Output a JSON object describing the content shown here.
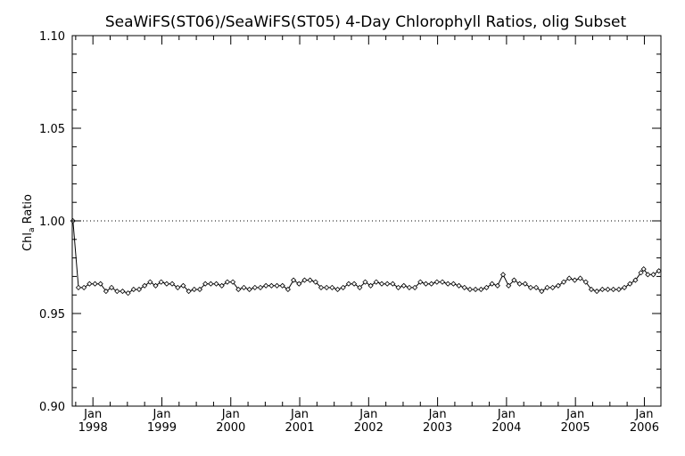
{
  "chart_data": {
    "type": "line",
    "title": "SeaWiFS(ST06)/SeaWiFS(ST05) 4-Day Chlorophyll Ratios, olig Subset",
    "ylabel_main": "Chl",
    "ylabel_sub": "a",
    "ylabel_tail": " Ratio",
    "xlabel": "",
    "ylim": [
      0.9,
      1.1
    ],
    "xlim": [
      1997.7,
      2006.24
    ],
    "y_ticks": [
      {
        "value": 0.9,
        "label": "0.90"
      },
      {
        "value": 0.95,
        "label": "0.95"
      },
      {
        "value": 1.0,
        "label": "1.00"
      },
      {
        "value": 1.05,
        "label": "1.05"
      },
      {
        "value": 1.1,
        "label": "1.10"
      }
    ],
    "x_ticks": [
      {
        "value": 1998.0,
        "month": "Jan",
        "year": "1998"
      },
      {
        "value": 1999.0,
        "month": "Jan",
        "year": "1999"
      },
      {
        "value": 2000.0,
        "month": "Jan",
        "year": "2000"
      },
      {
        "value": 2001.0,
        "month": "Jan",
        "year": "2001"
      },
      {
        "value": 2002.0,
        "month": "Jan",
        "year": "2002"
      },
      {
        "value": 2003.0,
        "month": "Jan",
        "year": "2003"
      },
      {
        "value": 2004.0,
        "month": "Jan",
        "year": "2004"
      },
      {
        "value": 2005.0,
        "month": "Jan",
        "year": "2005"
      },
      {
        "value": 2006.0,
        "month": "Jan",
        "year": "2006"
      }
    ],
    "reference_line": {
      "y": 1.0,
      "style": "dotted"
    },
    "grid": false,
    "series": [
      {
        "marker": "diamond",
        "color": "#000000",
        "points": [
          [
            1997.71,
            1.0
          ],
          [
            1997.79,
            0.964
          ],
          [
            1997.87,
            0.964
          ],
          [
            1997.95,
            0.966
          ],
          [
            1998.03,
            0.966
          ],
          [
            1998.11,
            0.966
          ],
          [
            1998.19,
            0.962
          ],
          [
            1998.27,
            0.964
          ],
          [
            1998.35,
            0.962
          ],
          [
            1998.43,
            0.962
          ],
          [
            1998.51,
            0.961
          ],
          [
            1998.59,
            0.963
          ],
          [
            1998.67,
            0.963
          ],
          [
            1998.75,
            0.965
          ],
          [
            1998.83,
            0.967
          ],
          [
            1998.91,
            0.965
          ],
          [
            1998.99,
            0.967
          ],
          [
            1999.07,
            0.966
          ],
          [
            1999.15,
            0.966
          ],
          [
            1999.23,
            0.964
          ],
          [
            1999.31,
            0.965
          ],
          [
            1999.39,
            0.962
          ],
          [
            1999.47,
            0.963
          ],
          [
            1999.55,
            0.963
          ],
          [
            1999.63,
            0.966
          ],
          [
            1999.71,
            0.966
          ],
          [
            1999.79,
            0.966
          ],
          [
            1999.87,
            0.965
          ],
          [
            1999.95,
            0.967
          ],
          [
            2000.03,
            0.967
          ],
          [
            2000.11,
            0.963
          ],
          [
            2000.19,
            0.964
          ],
          [
            2000.27,
            0.963
          ],
          [
            2000.35,
            0.964
          ],
          [
            2000.43,
            0.964
          ],
          [
            2000.51,
            0.965
          ],
          [
            2000.59,
            0.965
          ],
          [
            2000.67,
            0.965
          ],
          [
            2000.75,
            0.965
          ],
          [
            2000.83,
            0.963
          ],
          [
            2000.91,
            0.968
          ],
          [
            2000.99,
            0.966
          ],
          [
            2001.07,
            0.968
          ],
          [
            2001.15,
            0.968
          ],
          [
            2001.23,
            0.967
          ],
          [
            2001.31,
            0.964
          ],
          [
            2001.39,
            0.964
          ],
          [
            2001.47,
            0.964
          ],
          [
            2001.55,
            0.963
          ],
          [
            2001.63,
            0.964
          ],
          [
            2001.71,
            0.966
          ],
          [
            2001.79,
            0.966
          ],
          [
            2001.87,
            0.964
          ],
          [
            2001.95,
            0.967
          ],
          [
            2002.03,
            0.965
          ],
          [
            2002.11,
            0.967
          ],
          [
            2002.19,
            0.966
          ],
          [
            2002.27,
            0.966
          ],
          [
            2002.35,
            0.966
          ],
          [
            2002.43,
            0.964
          ],
          [
            2002.51,
            0.965
          ],
          [
            2002.59,
            0.964
          ],
          [
            2002.67,
            0.964
          ],
          [
            2002.75,
            0.967
          ],
          [
            2002.83,
            0.966
          ],
          [
            2002.91,
            0.966
          ],
          [
            2002.99,
            0.967
          ],
          [
            2003.07,
            0.967
          ],
          [
            2003.15,
            0.966
          ],
          [
            2003.23,
            0.966
          ],
          [
            2003.31,
            0.965
          ],
          [
            2003.39,
            0.964
          ],
          [
            2003.47,
            0.963
          ],
          [
            2003.55,
            0.963
          ],
          [
            2003.63,
            0.963
          ],
          [
            2003.71,
            0.964
          ],
          [
            2003.79,
            0.966
          ],
          [
            2003.87,
            0.965
          ],
          [
            2003.95,
            0.971
          ],
          [
            2004.03,
            0.965
          ],
          [
            2004.11,
            0.968
          ],
          [
            2004.19,
            0.966
          ],
          [
            2004.27,
            0.966
          ],
          [
            2004.35,
            0.964
          ],
          [
            2004.43,
            0.964
          ],
          [
            2004.51,
            0.962
          ],
          [
            2004.59,
            0.964
          ],
          [
            2004.67,
            0.964
          ],
          [
            2004.75,
            0.965
          ],
          [
            2004.83,
            0.967
          ],
          [
            2004.91,
            0.969
          ],
          [
            2004.99,
            0.968
          ],
          [
            2005.07,
            0.969
          ],
          [
            2005.15,
            0.967
          ],
          [
            2005.23,
            0.963
          ],
          [
            2005.31,
            0.962
          ],
          [
            2005.39,
            0.963
          ],
          [
            2005.47,
            0.963
          ],
          [
            2005.55,
            0.963
          ],
          [
            2005.63,
            0.963
          ],
          [
            2005.71,
            0.964
          ],
          [
            2005.79,
            0.966
          ],
          [
            2005.87,
            0.968
          ],
          [
            2005.95,
            0.972
          ],
          [
            2005.99,
            0.974
          ],
          [
            2006.05,
            0.971
          ],
          [
            2006.13,
            0.971
          ],
          [
            2006.21,
            0.973
          ]
        ]
      }
    ]
  }
}
